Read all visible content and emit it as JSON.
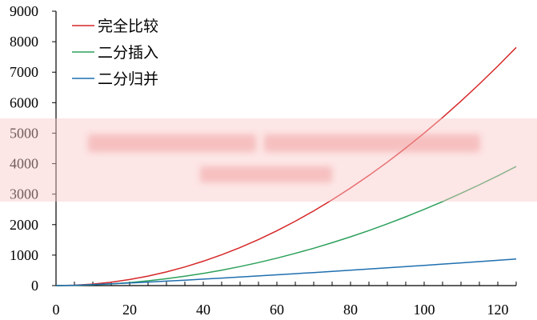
{
  "chart_data": {
    "type": "line",
    "x": [
      0,
      5,
      10,
      15,
      20,
      25,
      30,
      35,
      40,
      45,
      50,
      55,
      60,
      65,
      70,
      75,
      80,
      85,
      90,
      95,
      100,
      105,
      110,
      115,
      120,
      125
    ],
    "series": [
      {
        "name": "完全比较",
        "color": "#d62728",
        "values": [
          0,
          12.5,
          50,
          112.5,
          200,
          312.5,
          450,
          612.5,
          800,
          1012.5,
          1250,
          1512.5,
          1800,
          2112.5,
          2450,
          2812.5,
          3200,
          3612.5,
          4050,
          4512.5,
          5000,
          5512.5,
          6050,
          6612.5,
          7200,
          7812.5
        ]
      },
      {
        "name": "二分插入",
        "color": "#2ca05a",
        "values": [
          0,
          6.25,
          25,
          56.25,
          100,
          156.25,
          225,
          306.25,
          400,
          506.25,
          625,
          756.25,
          900,
          1056.25,
          1225,
          1406.25,
          1600,
          1806.25,
          2025,
          2256.25,
          2500,
          2756.25,
          3025,
          3306.25,
          3600,
          3906.25
        ]
      },
      {
        "name": "二分归并",
        "color": "#1f6fb0",
        "values": [
          0,
          11.6,
          33.2,
          58.6,
          86.4,
          116.1,
          147.2,
          179.6,
          212.9,
          247.1,
          282.2,
          317.9,
          354.4,
          391.4,
          429.0,
          467.1,
          505.8,
          544.9,
          584.4,
          624.3,
          664.4,
          705.0,
          745.9,
          787.1,
          828.7,
          870.6
        ]
      }
    ],
    "xlim": [
      0,
      125
    ],
    "ylim": [
      0,
      9000
    ],
    "xticks": [
      0,
      20,
      40,
      60,
      80,
      100,
      120
    ],
    "yticks": [
      0,
      1000,
      2000,
      3000,
      4000,
      5000,
      6000,
      7000,
      8000,
      9000
    ],
    "legend_position": "top-left",
    "grid": false
  }
}
